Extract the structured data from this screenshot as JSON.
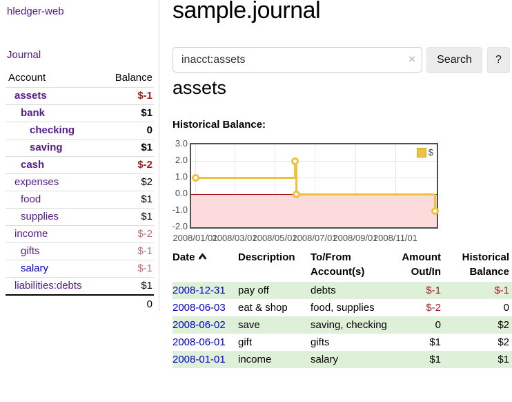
{
  "brand": "hledger-web",
  "nav": {
    "journal": "Journal"
  },
  "sidebar": {
    "headers": {
      "account": "Account",
      "balance": "Balance"
    },
    "rows": [
      {
        "name": "assets",
        "indent": 1,
        "bold": true,
        "link_color": "purple",
        "balance": "$-1",
        "balance_class": "neg"
      },
      {
        "name": "bank",
        "indent": 2,
        "bold": true,
        "link_color": "purple",
        "balance": "$1",
        "balance_class": ""
      },
      {
        "name": "checking",
        "indent": 3,
        "bold": true,
        "link_color": "purple",
        "balance": "0",
        "balance_class": ""
      },
      {
        "name": "saving",
        "indent": 3,
        "bold": true,
        "link_color": "purple",
        "balance": "$1",
        "balance_class": ""
      },
      {
        "name": "cash",
        "indent": 2,
        "bold": true,
        "link_color": "purple",
        "balance": "$-2",
        "balance_class": "neg"
      },
      {
        "name": "expenses",
        "indent": 1,
        "bold": false,
        "link_color": "purple",
        "balance": "$2",
        "balance_class": ""
      },
      {
        "name": "food",
        "indent": 2,
        "bold": false,
        "link_color": "purple",
        "balance": "$1",
        "balance_class": ""
      },
      {
        "name": "supplies",
        "indent": 2,
        "bold": false,
        "link_color": "purple",
        "balance": "$1",
        "balance_class": ""
      },
      {
        "name": "income",
        "indent": 1,
        "bold": false,
        "link_color": "purple",
        "balance": "$-2",
        "balance_class": "negl"
      },
      {
        "name": "gifts",
        "indent": 2,
        "bold": false,
        "link_color": "purple",
        "balance": "$-1",
        "balance_class": "negl"
      },
      {
        "name": "salary",
        "indent": 2,
        "bold": false,
        "link_color": "blue",
        "balance": "$-1",
        "balance_class": "negl"
      },
      {
        "name": "liabilities:debts",
        "indent": 1,
        "bold": false,
        "link_color": "purple",
        "balance": "$1",
        "balance_class": ""
      }
    ],
    "total": "0"
  },
  "main": {
    "title": "sample.journal",
    "search": {
      "value": "inacct:assets",
      "clear": "×",
      "button": "Search",
      "help": "?"
    },
    "account_title": "assets",
    "section_label": "Historical Balance:"
  },
  "chart_data": {
    "type": "line",
    "step": true,
    "title": "Historical Balance:",
    "series": [
      {
        "name": "$",
        "color": "#edc240",
        "points": [
          [
            "2008-01-01",
            1
          ],
          [
            "2008-06-01",
            2
          ],
          [
            "2008-06-03",
            0
          ],
          [
            "2008-12-31",
            -1
          ]
        ]
      }
    ],
    "x_ticks": [
      "2008/01/01",
      "2008/03/01",
      "2008/05/01",
      "2008/07/01",
      "2008/09/01",
      "2008/11/01"
    ],
    "y_ticks": [
      "3.0",
      "2.0",
      "1.0",
      "0.0",
      "-1.0",
      "-2.0"
    ],
    "ylim": [
      -2,
      3
    ],
    "xlim": [
      "2008-01-01",
      "2008-12-31"
    ],
    "grid": true,
    "zero_line_color": "#a40000",
    "negative_region_fill": "#fbdbdb",
    "legend": {
      "label": "$",
      "position": "top-right"
    }
  },
  "register": {
    "headers": {
      "date": "Date",
      "description": "Description",
      "accounts_l1": "To/From",
      "accounts_l2": "Account(s)",
      "amount_l1": "Amount",
      "amount_l2": "Out/In",
      "balance_l1": "Historical",
      "balance_l2": "Balance"
    },
    "rows": [
      {
        "date": "2008-12-31",
        "description": "pay off",
        "accounts": "debts",
        "amount": "$-1",
        "amount_neg": true,
        "balance": "$-1",
        "balance_neg": true
      },
      {
        "date": "2008-06-03",
        "description": "eat & shop",
        "accounts": "food, supplies",
        "amount": "$-2",
        "amount_neg": true,
        "balance": "0",
        "balance_neg": false
      },
      {
        "date": "2008-06-02",
        "description": "save",
        "accounts": "saving, checking",
        "amount": "0",
        "amount_neg": false,
        "balance": "$2",
        "balance_neg": false
      },
      {
        "date": "2008-06-01",
        "description": "gift",
        "accounts": "gifts",
        "amount": "$1",
        "amount_neg": false,
        "balance": "$2",
        "balance_neg": false
      },
      {
        "date": "2008-01-01",
        "description": "income",
        "accounts": "salary",
        "amount": "$1",
        "amount_neg": false,
        "balance": "$1",
        "balance_neg": false
      }
    ]
  }
}
